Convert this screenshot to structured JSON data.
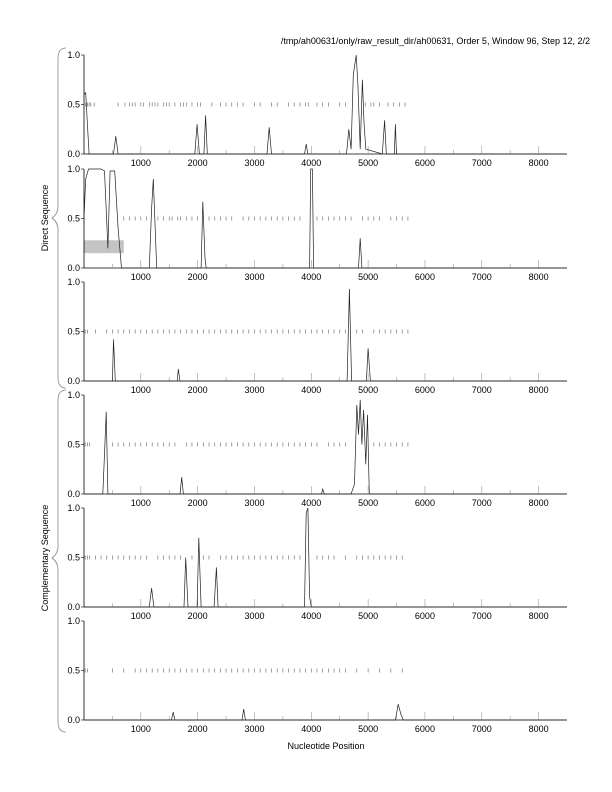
{
  "chart_data": {
    "type": "line",
    "title": "/tmp/ah00631/only/raw_result_dir/ah00631, Order 5, Window 96, Step 12, 2/2",
    "xlabel": "Nucleotide Position",
    "group_labels": [
      "Direct Sequence",
      "Complementary Sequence"
    ],
    "xlim": [
      0,
      8500
    ],
    "ylim": [
      0,
      1
    ],
    "x_ticks": [
      1000,
      2000,
      3000,
      4000,
      5000,
      6000,
      7000,
      8000
    ],
    "x_tick_labels": [
      "1000",
      "2000",
      "3000",
      "4000",
      "5000",
      "6000",
      "7000",
      "8000"
    ],
    "y_ticks": [
      0,
      0.5,
      1
    ],
    "y_tick_labels": [
      "0.0",
      "0.5",
      "1.0"
    ],
    "panels": [
      {
        "group": "Direct Sequence",
        "points": [
          [
            0,
            0.6
          ],
          [
            30,
            0.62
          ],
          [
            60,
            0.3
          ],
          [
            90,
            0
          ],
          [
            520,
            0
          ],
          [
            560,
            0.18
          ],
          [
            600,
            0
          ],
          [
            1950,
            0
          ],
          [
            1990,
            0.3
          ],
          [
            2030,
            0
          ],
          [
            2110,
            0
          ],
          [
            2140,
            0.39
          ],
          [
            2170,
            0
          ],
          [
            3220,
            0
          ],
          [
            3260,
            0.27
          ],
          [
            3300,
            0
          ],
          [
            3880,
            0
          ],
          [
            3910,
            0.1
          ],
          [
            3940,
            0
          ],
          [
            4620,
            0
          ],
          [
            4660,
            0.25
          ],
          [
            4700,
            0.05
          ],
          [
            4740,
            0.8
          ],
          [
            4790,
            1.0
          ],
          [
            4820,
            0.7
          ],
          [
            4860,
            0.05
          ],
          [
            4900,
            0.75
          ],
          [
            4930,
            0.3
          ],
          [
            4960,
            0.05
          ],
          [
            5250,
            0
          ],
          [
            5290,
            0.34
          ],
          [
            5320,
            0
          ],
          [
            5460,
            0
          ],
          [
            5480,
            0.3
          ],
          [
            5500,
            0
          ],
          [
            8500,
            0
          ]
        ],
        "marks": [
          30,
          60,
          90,
          120,
          180,
          600,
          720,
          800,
          850,
          900,
          1000,
          1050,
          1150,
          1200,
          1250,
          1300,
          1400,
          1450,
          1500,
          1600,
          1700,
          1750,
          1800,
          1900,
          2000,
          2050,
          2250,
          2400,
          2500,
          2600,
          2700,
          2800,
          3000,
          3100,
          3300,
          3400,
          3600,
          3700,
          3800,
          3900,
          3950,
          4100,
          4200,
          4300,
          4500,
          4600,
          4950,
          5050,
          5100,
          5200,
          5350,
          5450,
          5550,
          5650
        ]
      },
      {
        "group": "Direct Sequence",
        "points": [
          [
            0,
            0.5
          ],
          [
            30,
            0.9
          ],
          [
            80,
            1.0
          ],
          [
            300,
            1.0
          ],
          [
            360,
            0.98
          ],
          [
            420,
            0.2
          ],
          [
            460,
            0.98
          ],
          [
            540,
            0.98
          ],
          [
            600,
            0.4
          ],
          [
            660,
            0
          ],
          [
            1150,
            0
          ],
          [
            1190,
            0.6
          ],
          [
            1220,
            0.9
          ],
          [
            1280,
            0
          ],
          [
            2060,
            0
          ],
          [
            2090,
            0.67
          ],
          [
            2130,
            0.1
          ],
          [
            2150,
            0
          ],
          [
            3970,
            0
          ],
          [
            3990,
            1.0
          ],
          [
            4020,
            1.0
          ],
          [
            4040,
            0
          ],
          [
            4830,
            0
          ],
          [
            4860,
            0.3
          ],
          [
            4890,
            0
          ],
          [
            8500,
            0
          ]
        ],
        "highlight": {
          "x": [
            0,
            700
          ],
          "y": [
            0.15,
            0.28
          ]
        },
        "marks": [
          700,
          800,
          900,
          1000,
          1100,
          1300,
          1400,
          1500,
          1550,
          1650,
          1700,
          1800,
          1900,
          2000,
          2200,
          2300,
          2400,
          2500,
          2600,
          2800,
          2900,
          3000,
          3100,
          3200,
          3300,
          3400,
          3500,
          3600,
          3700,
          3800,
          4100,
          4200,
          4300,
          4400,
          4500,
          4600,
          4700,
          4900,
          5000,
          5100,
          5200,
          5400,
          5500,
          5600,
          5700
        ]
      },
      {
        "group": "Direct Sequence",
        "points": [
          [
            0,
            0
          ],
          [
            500,
            0
          ],
          [
            520,
            0.42
          ],
          [
            550,
            0
          ],
          [
            1640,
            0
          ],
          [
            1660,
            0.12
          ],
          [
            1690,
            0
          ],
          [
            4630,
            0
          ],
          [
            4670,
            0.93
          ],
          [
            4710,
            0
          ],
          [
            4970,
            0
          ],
          [
            5000,
            0.33
          ],
          [
            5040,
            0
          ],
          [
            8500,
            0
          ]
        ],
        "marks": [
          20,
          60,
          200,
          400,
          500,
          600,
          700,
          800,
          900,
          1000,
          1100,
          1200,
          1300,
          1400,
          1500,
          1600,
          1700,
          1800,
          1900,
          2000,
          2100,
          2200,
          2300,
          2400,
          2500,
          2600,
          2700,
          2800,
          2900,
          3000,
          3100,
          3200,
          3300,
          3400,
          3500,
          3600,
          3700,
          3800,
          3900,
          4000,
          4100,
          4200,
          4300,
          4400,
          4500,
          4600,
          4800,
          4900,
          5100,
          5200,
          5300,
          5400,
          5500,
          5600,
          5700
        ]
      },
      {
        "group": "Complementary Sequence",
        "points": [
          [
            0,
            0
          ],
          [
            330,
            0
          ],
          [
            360,
            0.4
          ],
          [
            390,
            0.83
          ],
          [
            420,
            0
          ],
          [
            1690,
            0
          ],
          [
            1720,
            0.17
          ],
          [
            1750,
            0
          ],
          [
            4180,
            0
          ],
          [
            4200,
            0.05
          ],
          [
            4230,
            0
          ],
          [
            4700,
            0
          ],
          [
            4760,
            0.1
          ],
          [
            4800,
            0.9
          ],
          [
            4830,
            0.6
          ],
          [
            4860,
            0.95
          ],
          [
            4890,
            0.5
          ],
          [
            4920,
            0.85
          ],
          [
            4960,
            0.3
          ],
          [
            4990,
            0.8
          ],
          [
            5020,
            0
          ],
          [
            8500,
            0
          ]
        ],
        "marks": [
          20,
          60,
          100,
          500,
          600,
          700,
          800,
          900,
          1000,
          1100,
          1200,
          1300,
          1400,
          1500,
          1600,
          1800,
          1900,
          2000,
          2100,
          2200,
          2300,
          2400,
          2500,
          2600,
          2700,
          2800,
          2900,
          3000,
          3100,
          3200,
          3300,
          3400,
          3500,
          3600,
          3700,
          3800,
          3900,
          4000,
          4100,
          4300,
          4400,
          4500,
          4600,
          5100,
          5200,
          5300,
          5400,
          5500,
          5600,
          5700
        ]
      },
      {
        "group": "Complementary Sequence",
        "points": [
          [
            0,
            0
          ],
          [
            1150,
            0
          ],
          [
            1190,
            0.19
          ],
          [
            1230,
            0
          ],
          [
            1760,
            0
          ],
          [
            1790,
            0.5
          ],
          [
            1830,
            0
          ],
          [
            1990,
            0
          ],
          [
            2020,
            0.7
          ],
          [
            2060,
            0
          ],
          [
            2290,
            0
          ],
          [
            2330,
            0.4
          ],
          [
            2360,
            0
          ],
          [
            3880,
            0
          ],
          [
            3910,
            0.95
          ],
          [
            3940,
            1.0
          ],
          [
            3970,
            0.1
          ],
          [
            4000,
            0
          ],
          [
            8500,
            0
          ]
        ],
        "marks": [
          20,
          60,
          100,
          200,
          300,
          400,
          500,
          600,
          700,
          800,
          900,
          1000,
          1100,
          1300,
          1400,
          1500,
          1600,
          1700,
          1900,
          2100,
          2200,
          2400,
          2500,
          2600,
          2700,
          2800,
          2900,
          3000,
          3100,
          3200,
          3300,
          3400,
          3500,
          3600,
          3700,
          3800,
          4100,
          4200,
          4300,
          4400,
          4600,
          4800,
          4900,
          5000,
          5100,
          5200,
          5300,
          5400,
          5500,
          5600
        ]
      },
      {
        "group": "Complementary Sequence",
        "points": [
          [
            0,
            0
          ],
          [
            1540,
            0
          ],
          [
            1570,
            0.08
          ],
          [
            1600,
            0
          ],
          [
            2780,
            0
          ],
          [
            2810,
            0.11
          ],
          [
            2840,
            0
          ],
          [
            5480,
            0
          ],
          [
            5530,
            0.16
          ],
          [
            5580,
            0.05
          ],
          [
            5620,
            0
          ],
          [
            8500,
            0
          ]
        ],
        "marks": [
          20,
          60,
          500,
          700,
          900,
          1000,
          1100,
          1200,
          1300,
          1400,
          1500,
          1600,
          1700,
          1800,
          1900,
          2000,
          2100,
          2200,
          2300,
          2400,
          2500,
          2600,
          2700,
          2800,
          2900,
          3000,
          3100,
          3200,
          3300,
          3400,
          3500,
          3600,
          3700,
          3800,
          3900,
          4000,
          4100,
          4200,
          4300,
          4400,
          4500,
          4600,
          4800,
          5000,
          5200,
          5400,
          5600
        ]
      }
    ]
  }
}
